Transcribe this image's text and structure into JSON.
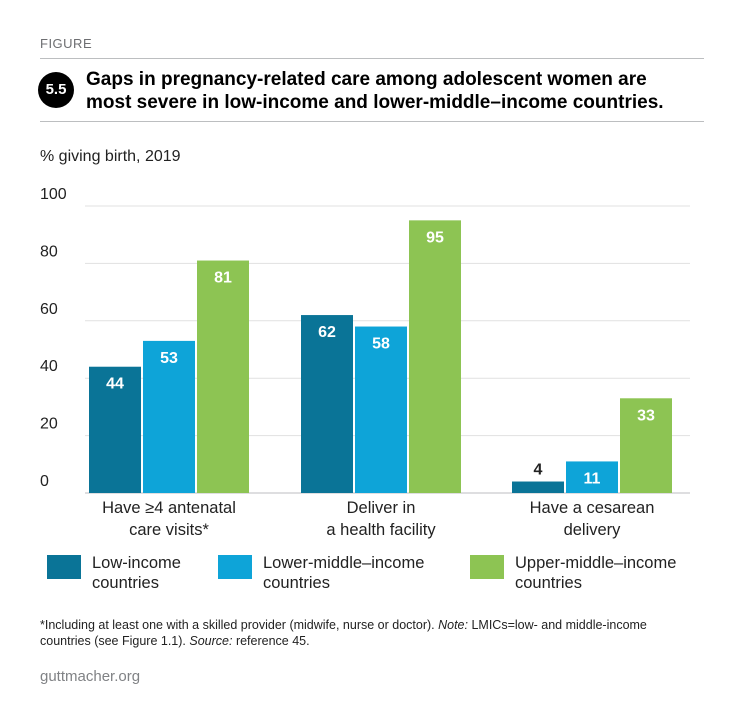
{
  "header": {
    "kicker": "FIGURE",
    "number": "5.5",
    "title": "Gaps in pregnancy-related care among adolescent women are most severe in low-income and lower-middle–income countries."
  },
  "chart_data": {
    "type": "bar",
    "ylabel": "% giving birth, 2019",
    "ylim": [
      0,
      100
    ],
    "yticks": [
      0,
      20,
      40,
      60,
      80,
      100
    ],
    "grid": true,
    "legend_position": "bottom",
    "categories": [
      [
        "Have ≥4 antenatal",
        "care visits*"
      ],
      [
        "Deliver in",
        "a health facility"
      ],
      [
        "Have a cesarean",
        "delivery"
      ]
    ],
    "series": [
      {
        "name": "Low-income countries",
        "name_lines": [
          "Low-income",
          "countries"
        ],
        "color": "#0a7497",
        "values": [
          44,
          62,
          4
        ]
      },
      {
        "name": "Lower-middle–income countries",
        "name_lines": [
          "Lower-middle–income",
          "countries"
        ],
        "color": "#0ea4d8",
        "values": [
          53,
          58,
          11
        ]
      },
      {
        "name": "Upper-middle–income countries",
        "name_lines": [
          "Upper-middle–income",
          "countries"
        ],
        "color": "#8dc453",
        "values": [
          81,
          95,
          33
        ]
      }
    ]
  },
  "footnote": {
    "part1": "*Including at least one with a skilled provider (midwife, nurse or doctor). ",
    "note_label": "Note:",
    "part2": " LMICs=low- and middle-income countries (see Figure 1.1). ",
    "source_label": "Source:",
    "part3": " reference 45."
  },
  "site": "guttmacher.org",
  "colors": {
    "grid": "#e1e1e1",
    "axis": "#bcbec0",
    "label_dark": "#222222",
    "label_light": "#ffffff"
  }
}
